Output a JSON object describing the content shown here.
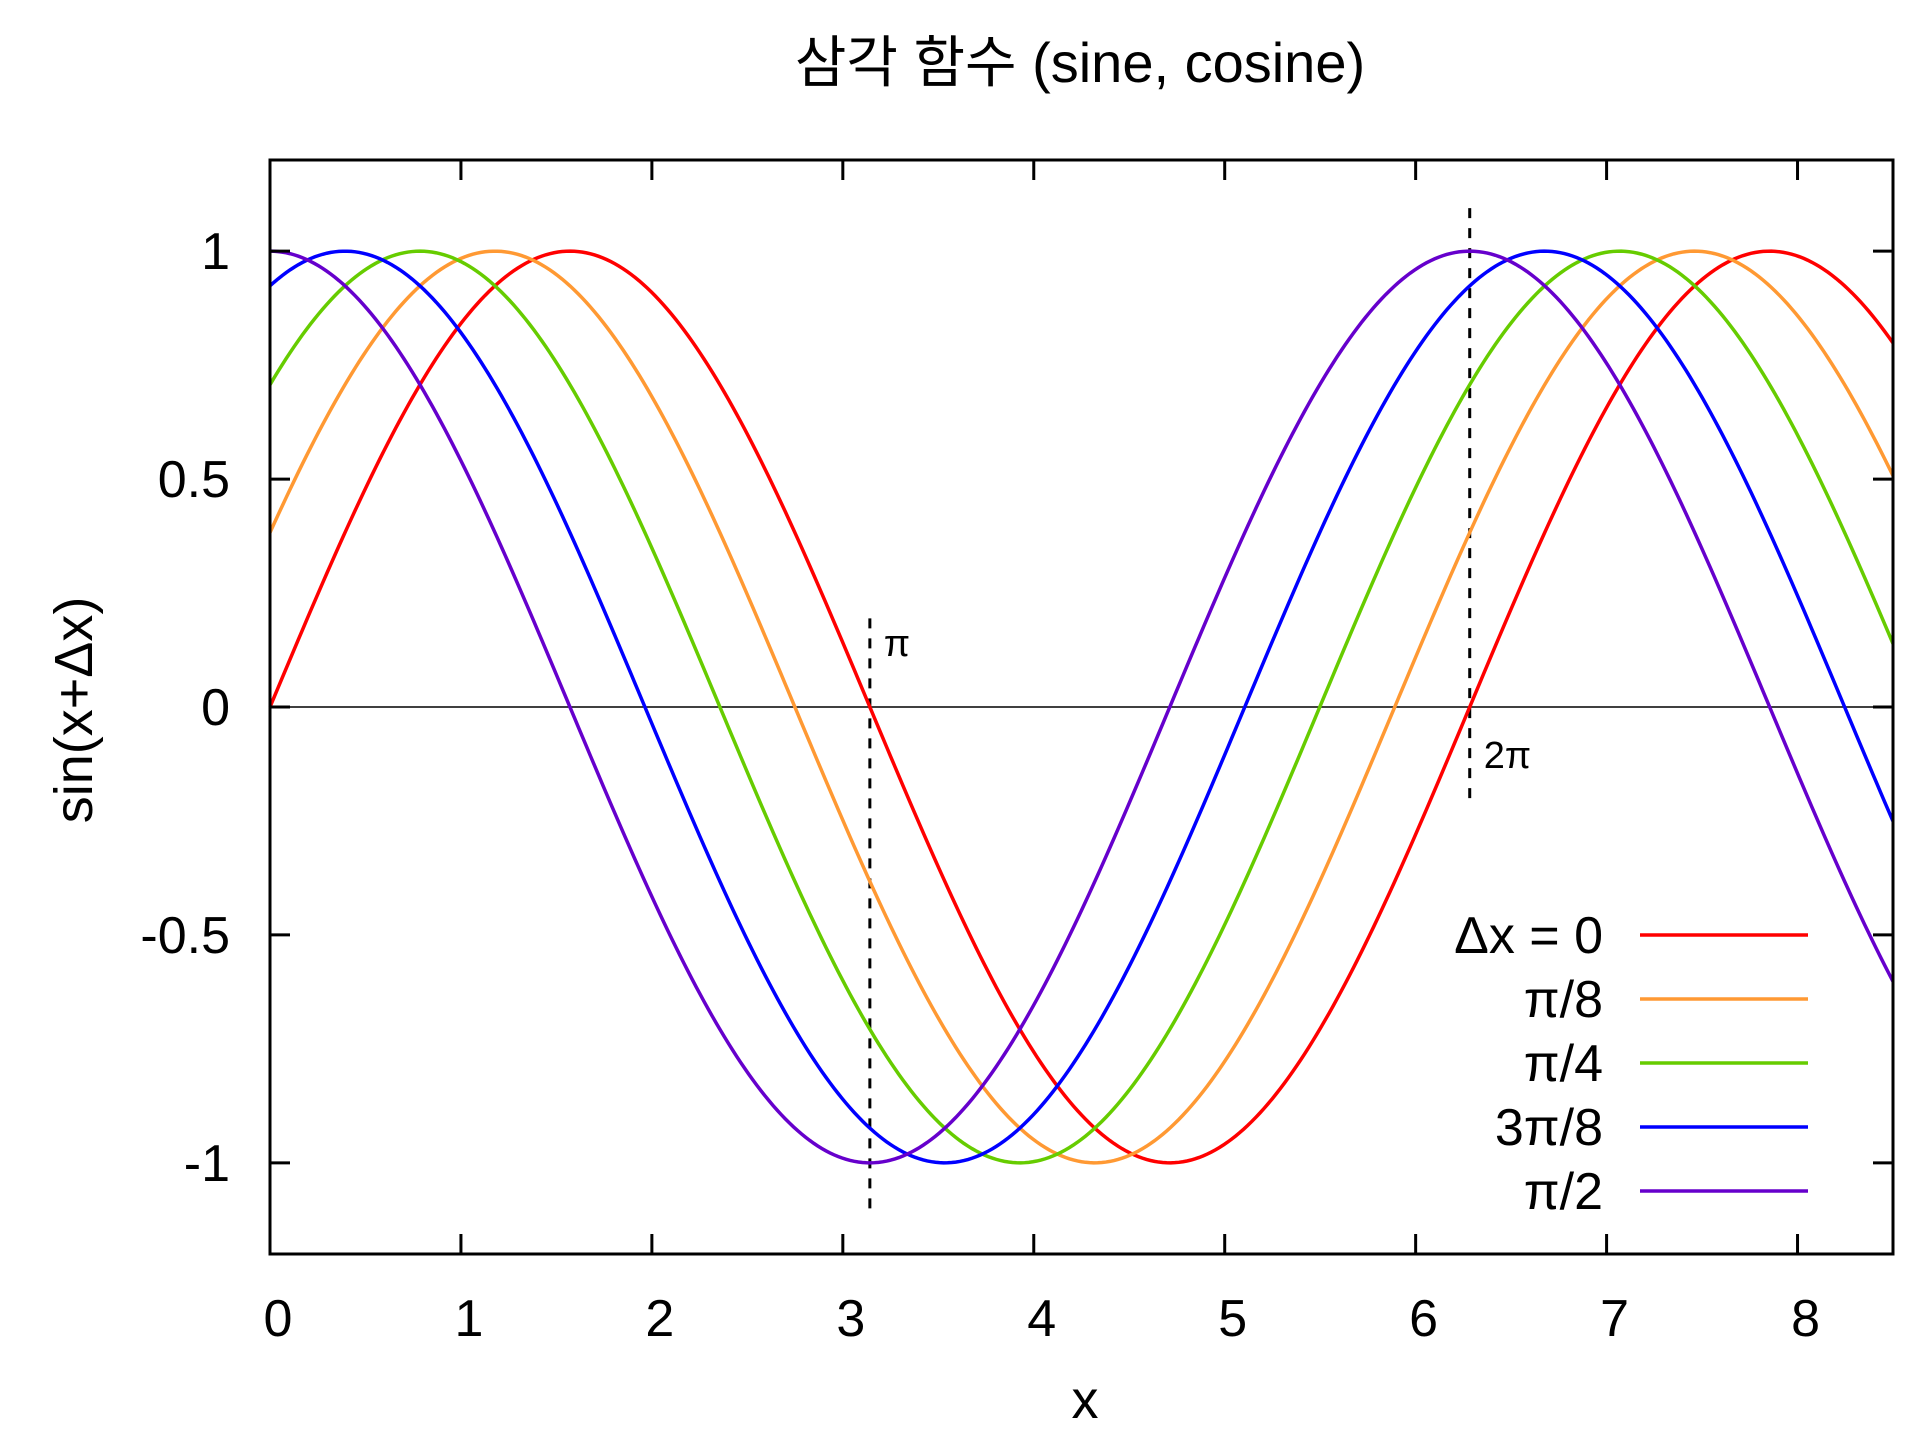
{
  "chart_data": {
    "type": "line",
    "title": "삼각 함수 (sine, cosine)",
    "xlabel": "x",
    "ylabel": "sin(x+Δx)",
    "xlim": [
      0,
      8.5
    ],
    "ylim": [
      -1.2,
      1.2
    ],
    "x_ticks": [
      0,
      1,
      2,
      3,
      4,
      5,
      6,
      7,
      8
    ],
    "x_tick_labels": [
      "0",
      "1",
      "2",
      "3",
      "4",
      "5",
      "6",
      "7",
      "8"
    ],
    "y_ticks": [
      1,
      0.5,
      0,
      -0.5,
      -1
    ],
    "y_tick_labels": [
      "1",
      "0.5",
      "0",
      "-0.5",
      "-1"
    ],
    "grid": false,
    "zero_line": true,
    "function": "sin(x + Δx)",
    "legend_placement": "bottom-right",
    "series": [
      {
        "name": "Δx = 0",
        "shift": 0,
        "color": "#ff0000"
      },
      {
        "name": "π/8",
        "shift": 0.3927,
        "color": "#ff9933"
      },
      {
        "name": "π/4",
        "shift": 0.7854,
        "color": "#66cc00"
      },
      {
        "name": "3π/8",
        "shift": 1.1781,
        "color": "#0000ff"
      },
      {
        "name": "π/2",
        "shift": 1.5708,
        "color": "#6600cc"
      }
    ],
    "reference_lines": [
      {
        "x": 3.1416,
        "y_from": -1.1,
        "y_to": 0.2,
        "label": "π"
      },
      {
        "x": 6.2832,
        "y_from": -0.2,
        "y_to": 1.1,
        "label": "2π"
      }
    ]
  }
}
